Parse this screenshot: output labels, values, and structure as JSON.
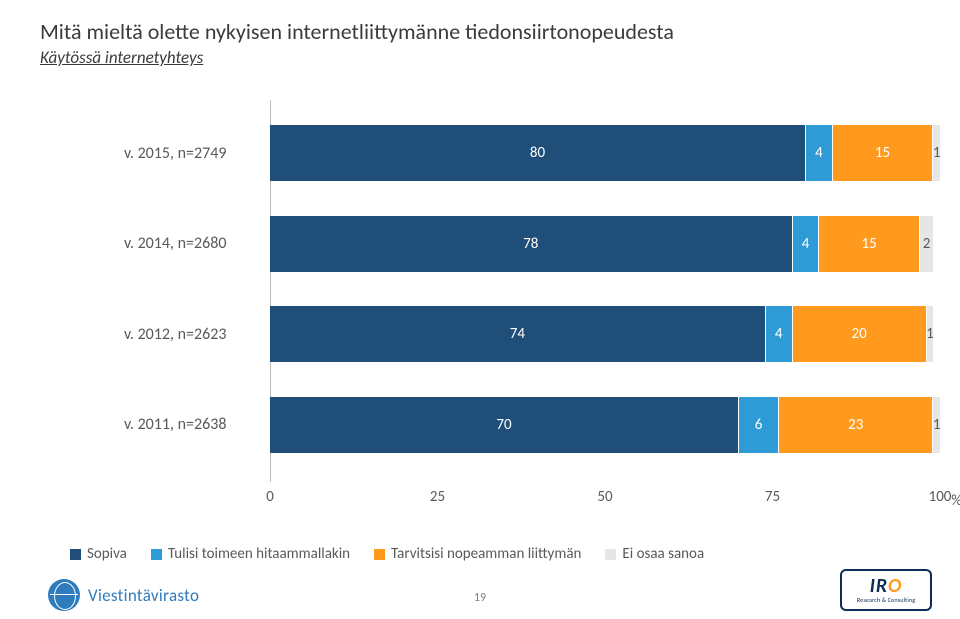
{
  "title": "Mitä mieltä olette nykyisen internetliittymänne tiedonsiirtonopeudesta",
  "subtitle": "Käytössä internetyhteys",
  "chart": {
    "type": "stacked-bar-horizontal",
    "bar_categories": [
      {
        "label": "v. 2015, n=2749",
        "values": [
          80,
          4,
          15,
          1
        ]
      },
      {
        "label": "v. 2014, n=2680",
        "values": [
          78,
          4,
          15,
          2
        ]
      },
      {
        "label": "v. 2012, n=2623",
        "values": [
          74,
          4,
          20,
          1
        ]
      },
      {
        "label": "v. 2011, n=2638",
        "values": [
          70,
          6,
          23,
          1
        ]
      }
    ],
    "series_colors": [
      "#1f4e79",
      "#2e9bd6",
      "#ff9a1f",
      "#e6e6e6"
    ],
    "value_text_colors": [
      "#ffffff",
      "#ffffff",
      "#ffffff",
      "#595959"
    ],
    "x_ticks": [
      0,
      25,
      50,
      75,
      100
    ],
    "x_unit": "%",
    "background_color": "#ffffff",
    "axis_color": "#bfbfbf",
    "label_fontsize": 16,
    "value_fontsize": 15
  },
  "legend": {
    "items": [
      {
        "label": "Sopiva",
        "color": "#1f4e79"
      },
      {
        "label": "Tulisi toimeen hitaammallakin",
        "color": "#2e9bd6"
      },
      {
        "label": "Tarvitsisi nopeamman liittymän",
        "color": "#ff9a1f"
      },
      {
        "label": "Ei osaa sanoa",
        "color": "#e6e6e6"
      }
    ]
  },
  "footer": {
    "left_logo_text": "Viestintävirasto",
    "page_number": "19",
    "right_logo_main": "IR",
    "right_logo_dot": "O",
    "right_logo_sub": "Research & Consulting"
  }
}
